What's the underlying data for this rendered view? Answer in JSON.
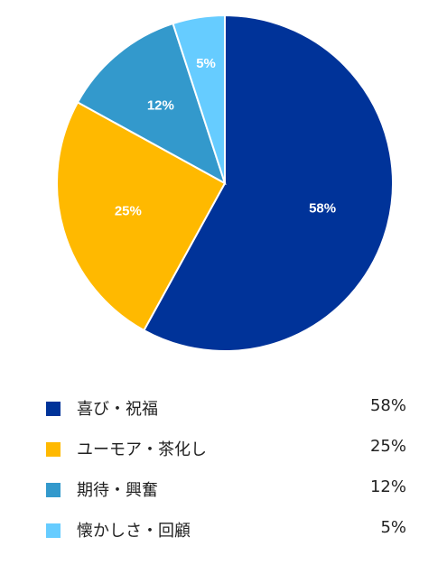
{
  "chart_data": {
    "type": "pie",
    "title": "",
    "categories": [
      "喜び・祝福",
      "ユーモア・茶化し",
      "期待・興奮",
      "懐かしさ・回顧"
    ],
    "values": [
      58,
      25,
      12,
      5
    ],
    "value_labels": [
      "58%",
      "25%",
      "12%",
      "5%"
    ],
    "colors": [
      "#003399",
      "#ffb900",
      "#3399cc",
      "#66ccff"
    ],
    "legend_position": "bottom"
  }
}
